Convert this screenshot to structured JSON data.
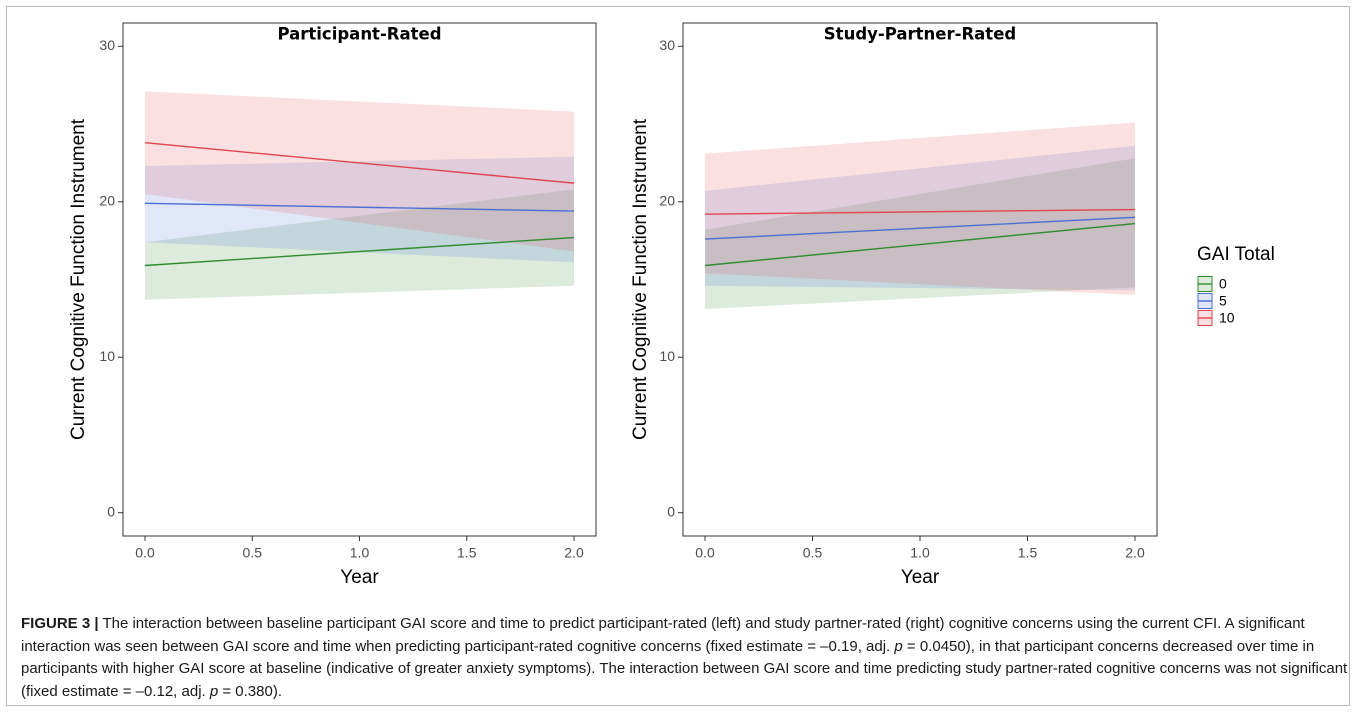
{
  "chart_data": [
    {
      "type": "line",
      "title": "Participant-Rated",
      "xlabel": "Year",
      "ylabel": "Current Cognitive Function Instrument",
      "xlim": [
        0,
        2
      ],
      "ylim": [
        0,
        30
      ],
      "x_ticks": [
        "0.0",
        "0.5",
        "1.0",
        "1.5",
        "2.0"
      ],
      "y_ticks": [
        "0",
        "10",
        "20",
        "30"
      ],
      "grid": false,
      "series": [
        {
          "name": "0",
          "color": "#2e8b2e",
          "x": [
            0,
            2
          ],
          "y": [
            15.9,
            17.7
          ],
          "ci_lower": [
            13.7,
            14.6
          ],
          "ci_upper": [
            17.4,
            20.8
          ]
        },
        {
          "name": "5",
          "color": "#4a6fd4",
          "x": [
            0,
            2
          ],
          "y": [
            19.9,
            19.4
          ],
          "ci_lower": [
            17.4,
            16.1
          ],
          "ci_upper": [
            22.3,
            22.9
          ]
        },
        {
          "name": "10",
          "color": "#e0454f",
          "x": [
            0,
            2
          ],
          "y": [
            23.8,
            21.2
          ],
          "ci_lower": [
            20.5,
            16.8
          ],
          "ci_upper": [
            27.1,
            25.8
          ]
        }
      ]
    },
    {
      "type": "line",
      "title": "Study-Partner-Rated",
      "xlabel": "Year",
      "ylabel": "Current Cognitive Function Instrument",
      "xlim": [
        0,
        2
      ],
      "ylim": [
        0,
        30
      ],
      "x_ticks": [
        "0.0",
        "0.5",
        "1.0",
        "1.5",
        "2.0"
      ],
      "y_ticks": [
        "0",
        "10",
        "20",
        "30"
      ],
      "grid": false,
      "series": [
        {
          "name": "0",
          "color": "#2e8b2e",
          "x": [
            0,
            2
          ],
          "y": [
            15.9,
            18.6
          ],
          "ci_lower": [
            13.1,
            14.5
          ],
          "ci_upper": [
            18.2,
            22.8
          ]
        },
        {
          "name": "5",
          "color": "#4a6fd4",
          "x": [
            0,
            2
          ],
          "y": [
            17.6,
            19.0
          ],
          "ci_lower": [
            14.6,
            14.3
          ],
          "ci_upper": [
            20.7,
            23.6
          ]
        },
        {
          "name": "10",
          "color": "#e0454f",
          "x": [
            0,
            2
          ],
          "y": [
            19.2,
            19.5
          ],
          "ci_lower": [
            15.4,
            14.0
          ],
          "ci_upper": [
            23.1,
            25.1
          ]
        }
      ]
    }
  ],
  "legend": {
    "title": "GAI Total",
    "position": "right",
    "items": [
      {
        "label": "0",
        "color": "#2e8b2e"
      },
      {
        "label": "5",
        "color": "#4a6fd4"
      },
      {
        "label": "10",
        "color": "#e0454f"
      }
    ]
  },
  "caption": {
    "label": "FIGURE 3 |",
    "seg1": " The interaction between baseline participant GAI score and time to predict participant-rated (left) and study partner-rated (right) cognitive concerns using the current CFI. A significant interaction was seen between GAI score and time when predicting participant-rated cognitive concerns (fixed estimate = –0.19, adj. ",
    "p1": "p",
    "seg2": " = 0.0450), in that participant concerns decreased over time in participants with higher GAI score at baseline (indicative of greater anxiety symptoms). The interaction between GAI score and time predicting study partner-rated cognitive concerns was not significant (fixed estimate = –0.12, adj. ",
    "p2": "p",
    "seg3": " = 0.380)."
  }
}
